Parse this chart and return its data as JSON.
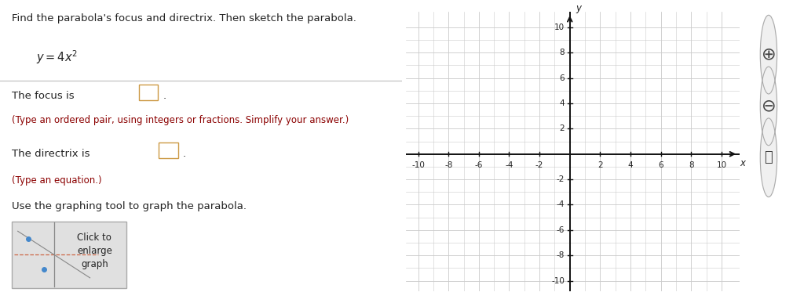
{
  "title_text": "Find the parabola's focus and directrix. Then sketch the parabola.",
  "hint_color": "#8B0000",
  "text_color": "#222222",
  "bg_color": "#ffffff",
  "graph_bg": "#ffffff",
  "grid_minor_color": "#cccccc",
  "grid_major_color": "#bbbbbb",
  "axis_color": "#111111",
  "xlim": [
    -10.5,
    11.0
  ],
  "ylim": [
    -10.5,
    11.0
  ],
  "xlabel": "x",
  "ylabel": "y",
  "divider_color": "#bbbbbb",
  "thumbnail_bg": "#e0e0e0",
  "thumbnail_point_color": "#4488cc",
  "thumbnail_line_color": "#cc6644",
  "thumbnail_axis_color": "#888888",
  "box_edge_color": "#cc9944",
  "icon_color": "#444444",
  "icon_bg": "#f0f0f0"
}
